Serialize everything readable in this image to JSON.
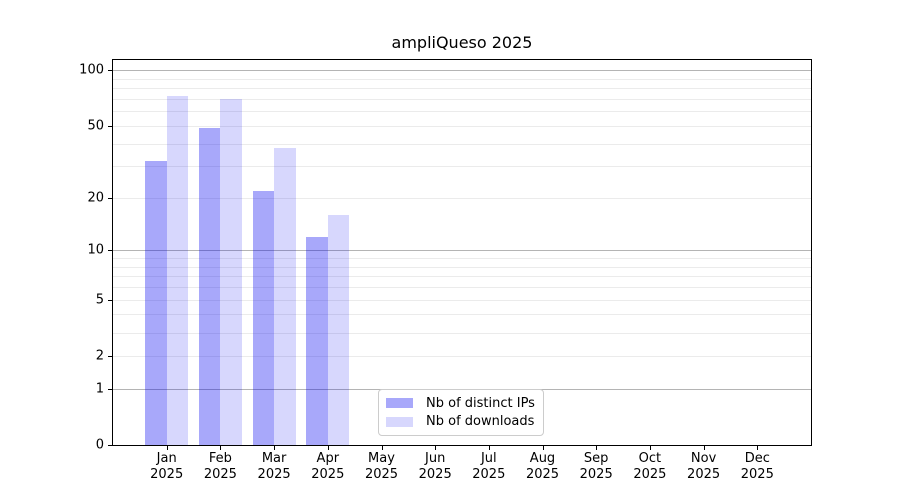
{
  "figure": {
    "background": "#ffffff",
    "text_color": "#000000"
  },
  "chart_data": {
    "type": "bar",
    "title": "ampliQueso 2025",
    "categories": [
      "Jan",
      "Feb",
      "Mar",
      "Apr",
      "May",
      "Jun",
      "Jul",
      "Aug",
      "Sep",
      "Oct",
      "Nov",
      "Dec"
    ],
    "category_year": "2025",
    "series": [
      {
        "name": "Nb of distinct IPs",
        "color": "rgba(0,0,240,0.34)",
        "values": [
          32,
          49,
          22,
          12,
          0,
          0,
          0,
          0,
          0,
          0,
          0,
          0
        ]
      },
      {
        "name": "Nb of downloads",
        "color": "rgba(0,0,240,0.155)",
        "values": [
          73,
          70,
          38,
          16,
          0,
          0,
          0,
          0,
          0,
          0,
          0,
          0
        ]
      }
    ],
    "xlabel": "",
    "ylabel": "",
    "y_scale": "log10(value+1)",
    "ylim": [
      0,
      113.8
    ],
    "y_ticks": [
      0,
      1,
      2,
      5,
      10,
      20,
      50,
      100
    ],
    "y_major_gridlines": [
      1,
      10,
      100
    ],
    "y_minor_gridlines": [
      2,
      3,
      4,
      5,
      6,
      7,
      8,
      9,
      20,
      30,
      40,
      50,
      60,
      70,
      80,
      90
    ],
    "grid": "on",
    "legend_position": "lower center-right inside plot",
    "bar_layout": "grouped pair per month, touching, centered on tick"
  },
  "colors": {
    "axis": "#000000",
    "major_gridline": "#b4b4b4",
    "minor_gridline": "#ebebeb",
    "legend_border": "#cccccc"
  }
}
